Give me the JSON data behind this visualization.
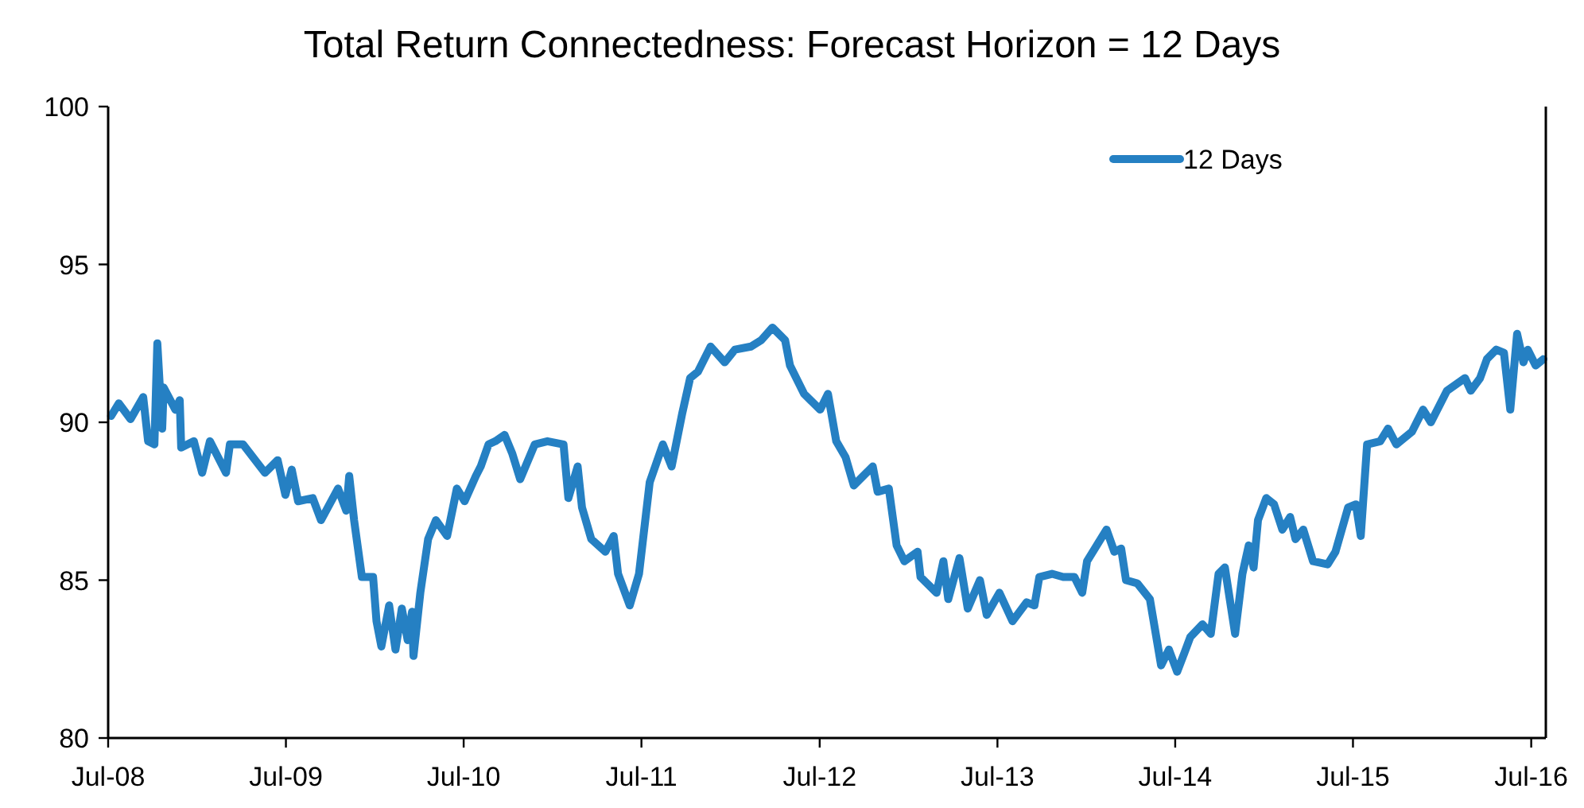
{
  "chart_data": {
    "type": "line",
    "title": "Total Return Connectedness: Forecast Horizon = 12 Days",
    "xlim": [
      "2008-07-01",
      "2016-07-31"
    ],
    "xticks": [
      {
        "value": "2008-07-01",
        "label": "Jul-08"
      },
      {
        "value": "2009-07-01",
        "label": "Jul-09"
      },
      {
        "value": "2010-07-01",
        "label": "Jul-10"
      },
      {
        "value": "2011-07-01",
        "label": "Jul-11"
      },
      {
        "value": "2012-07-01",
        "label": "Jul-12"
      },
      {
        "value": "2013-07-01",
        "label": "Jul-13"
      },
      {
        "value": "2014-07-01",
        "label": "Jul-14"
      },
      {
        "value": "2015-07-01",
        "label": "Jul-15"
      },
      {
        "value": "2016-07-01",
        "label": "Jul-16"
      }
    ],
    "ylim": [
      80,
      100
    ],
    "yticks": [
      80,
      85,
      90,
      95,
      100
    ],
    "grid": false,
    "legend": "top right",
    "marker": "none",
    "line_style": "solid",
    "series": [
      {
        "name": "12 Days",
        "color": "#2580c3",
        "x": [
          "2008-07-07",
          "2008-07-23",
          "2008-08-16",
          "2008-09-11",
          "2008-09-21",
          "2008-10-04",
          "2008-10-10",
          "2008-10-20",
          "2008-10-23",
          "2008-11-16",
          "2008-11-25",
          "2008-11-28",
          "2008-12-24",
          "2009-01-10",
          "2009-01-26",
          "2009-02-28",
          "2009-03-08",
          "2009-04-04",
          "2009-05-19",
          "2009-06-14",
          "2009-06-30",
          "2009-07-13",
          "2009-07-26",
          "2009-08-25",
          "2009-09-11",
          "2009-10-16",
          "2009-11-02",
          "2009-11-08",
          "2009-11-18",
          "2009-12-04",
          "2009-12-27",
          "2010-01-03",
          "2010-01-13",
          "2010-01-29",
          "2010-02-11",
          "2010-02-24",
          "2010-03-08",
          "2010-03-17",
          "2010-03-20",
          "2010-04-03",
          "2010-04-19",
          "2010-05-05",
          "2010-05-28",
          "2010-06-17",
          "2010-07-03",
          "2010-07-26",
          "2010-08-05",
          "2010-08-21",
          "2010-09-04",
          "2010-09-23",
          "2010-10-09",
          "2010-10-25",
          "2010-11-24",
          "2010-12-20",
          "2011-01-22",
          "2011-02-01",
          "2011-02-20",
          "2011-03-01",
          "2011-03-20",
          "2011-04-18",
          "2011-05-05",
          "2011-05-14",
          "2011-06-07",
          "2011-06-26",
          "2011-07-18",
          "2011-08-14",
          "2011-09-01",
          "2011-09-23",
          "2011-10-09",
          "2011-10-25",
          "2011-11-20",
          "2011-12-19",
          "2012-01-09",
          "2012-02-11",
          "2012-03-03",
          "2012-03-26",
          "2012-04-21",
          "2012-05-01",
          "2012-05-30",
          "2012-07-02",
          "2012-07-18",
          "2012-08-04",
          "2012-08-23",
          "2012-09-09",
          "2012-10-18",
          "2012-10-28",
          "2012-11-20",
          "2012-12-06",
          "2012-12-22",
          "2013-01-18",
          "2013-01-24",
          "2013-02-26",
          "2013-03-12",
          "2013-03-22",
          "2013-04-14",
          "2013-05-01",
          "2013-05-26",
          "2013-06-09",
          "2013-07-05",
          "2013-08-01",
          "2013-08-30",
          "2013-09-15",
          "2013-09-25",
          "2013-10-21",
          "2013-11-13",
          "2013-12-06",
          "2013-12-22",
          "2014-01-01",
          "2014-02-10",
          "2014-02-26",
          "2014-03-12",
          "2014-03-22",
          "2014-04-14",
          "2014-05-10",
          "2014-06-02",
          "2014-06-18",
          "2014-07-05",
          "2014-07-20",
          "2014-08-01",
          "2014-08-26",
          "2014-09-12",
          "2014-09-28",
          "2014-10-11",
          "2014-11-01",
          "2014-11-16",
          "2014-11-29",
          "2014-12-09",
          "2014-12-18",
          "2015-01-04",
          "2015-01-20",
          "2015-02-06",
          "2015-02-22",
          "2015-03-05",
          "2015-03-21",
          "2015-04-10",
          "2015-05-10",
          "2015-05-26",
          "2015-06-21",
          "2015-07-07",
          "2015-07-17",
          "2015-07-30",
          "2015-08-26",
          "2015-09-11",
          "2015-09-28",
          "2015-10-30",
          "2015-11-22",
          "2015-12-08",
          "2016-01-10",
          "2016-02-16",
          "2016-02-28",
          "2016-03-18",
          "2016-04-01",
          "2016-04-20",
          "2016-05-06",
          "2016-05-19",
          "2016-06-02",
          "2016-06-15",
          "2016-06-24",
          "2016-07-10",
          "2016-07-26"
        ],
        "values": [
          90.2,
          90.6,
          90.1,
          90.8,
          89.4,
          89.3,
          92.5,
          89.8,
          91.1,
          90.4,
          90.7,
          89.2,
          89.4,
          88.4,
          89.4,
          88.4,
          89.3,
          89.3,
          88.4,
          88.8,
          87.7,
          88.5,
          87.5,
          87.6,
          86.9,
          87.9,
          87.2,
          88.3,
          86.9,
          85.1,
          85.1,
          83.7,
          82.9,
          84.2,
          82.8,
          84.1,
          83.1,
          84.0,
          82.6,
          84.6,
          86.3,
          86.9,
          86.4,
          87.9,
          87.5,
          88.3,
          88.6,
          89.3,
          89.4,
          89.6,
          89.0,
          88.2,
          89.3,
          89.4,
          89.3,
          87.6,
          88.6,
          87.3,
          86.3,
          85.9,
          86.4,
          85.2,
          84.2,
          85.2,
          88.1,
          89.3,
          88.6,
          90.3,
          91.4,
          91.6,
          92.4,
          91.9,
          92.3,
          92.4,
          92.6,
          93.0,
          92.6,
          91.8,
          90.9,
          90.4,
          90.9,
          89.4,
          88.9,
          88.0,
          88.6,
          87.8,
          87.9,
          86.1,
          85.6,
          85.9,
          85.1,
          84.6,
          85.6,
          84.4,
          85.7,
          84.1,
          85.0,
          83.9,
          84.6,
          83.7,
          84.3,
          84.2,
          85.1,
          85.2,
          85.1,
          85.1,
          84.6,
          85.6,
          86.6,
          85.9,
          86.0,
          85.0,
          84.9,
          84.4,
          82.3,
          82.8,
          82.1,
          82.7,
          83.2,
          83.6,
          83.3,
          85.2,
          85.4,
          83.3,
          85.2,
          86.1,
          85.4,
          86.9,
          87.6,
          87.4,
          86.6,
          87.0,
          86.3,
          86.6,
          85.6,
          85.5,
          85.9,
          87.3,
          87.4,
          86.4,
          89.3,
          89.4,
          89.8,
          89.3,
          89.7,
          90.4,
          90.0,
          91.0,
          91.4,
          91.0,
          91.4,
          92.0,
          92.3,
          92.2,
          90.4,
          92.8,
          91.9,
          92.3,
          91.8,
          92.0
        ]
      }
    ]
  }
}
